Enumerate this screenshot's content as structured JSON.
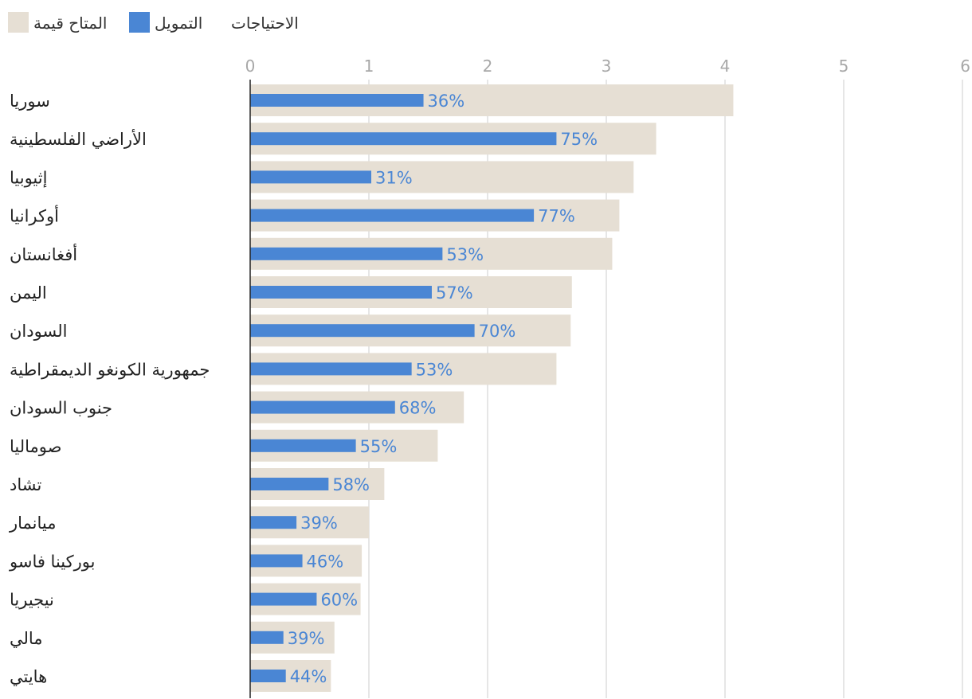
{
  "legend": {
    "needs_label": "الاحتياجات",
    "funding_label": "التمويل",
    "available_label": "المتاح قيمة"
  },
  "colors": {
    "needs": "#e6dfd4",
    "funding": "#4a86d4",
    "grid": "#dddddd",
    "axis": "#222222"
  },
  "chart_data": {
    "type": "bar",
    "orientation": "horizontal",
    "xlim": [
      0,
      6
    ],
    "xticks": [
      "0",
      "1",
      "2",
      "3",
      "4",
      "5",
      "6"
    ],
    "grid": true,
    "legend_position": "top-left",
    "categories": [
      "سوريا",
      "الأراضي الفلسطينية",
      "إثيوبيا",
      "أوكرانيا",
      "أفغانستان",
      "اليمن",
      "السودان",
      "جمهورية الكونغو الديمقراطية",
      "جنوب السودان",
      "صوماليا",
      "تشاد",
      "ميانمار",
      "بوركينا فاسو",
      "نيجيريا",
      "مالي",
      "هايتي"
    ],
    "series": [
      {
        "name": "الاحتياجات",
        "values": [
          4.07,
          3.42,
          3.23,
          3.11,
          3.05,
          2.71,
          2.7,
          2.58,
          1.8,
          1.58,
          1.13,
          1.0,
          0.94,
          0.93,
          0.71,
          0.68
        ]
      },
      {
        "name": "التمويل",
        "values": [
          1.46,
          2.58,
          1.02,
          2.39,
          1.62,
          1.53,
          1.89,
          1.36,
          1.22,
          0.89,
          0.66,
          0.39,
          0.44,
          0.56,
          0.28,
          0.3
        ]
      }
    ],
    "data_labels": [
      "36%",
      "75%",
      "31%",
      "77%",
      "53%",
      "57%",
      "70%",
      "53%",
      "68%",
      "55%",
      "58%",
      "39%",
      "46%",
      "60%",
      "39%",
      "44%"
    ]
  }
}
